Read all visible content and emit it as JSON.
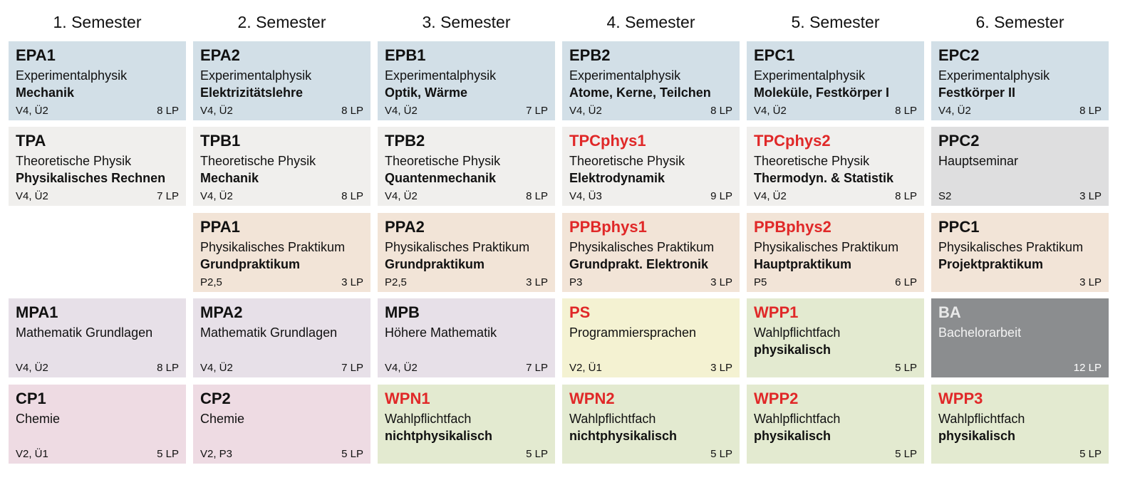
{
  "semesters": [
    "1. Semester",
    "2. Semester",
    "3. Semester",
    "4. Semester",
    "5. Semester",
    "6. Semester"
  ],
  "colors": {
    "experimental": "#d2dfe7",
    "theoretical": "#f0efed",
    "seminar": "#dededf",
    "practical": "#f2e4d7",
    "math": "#e7e0e8",
    "chemistry": "#eedbe3",
    "programming": "#f4f2d2",
    "elective": "#e3ead0",
    "thesis": "#8b8d8f",
    "highlight": "#e02828"
  },
  "rows": [
    [
      {
        "code": "EPA1",
        "line1": "Experimentalphysik",
        "line2": "Mechanik",
        "hours": "V4, Ü2",
        "credits": "8 LP",
        "color": "experimental",
        "red": false
      },
      {
        "code": "EPA2",
        "line1": "Experimentalphysik",
        "line2": "Elektrizitätslehre",
        "hours": "V4, Ü2",
        "credits": "8 LP",
        "color": "experimental",
        "red": false
      },
      {
        "code": "EPB1",
        "line1": "Experimentalphysik",
        "line2": "Optik, Wärme",
        "hours": "V4, Ü2",
        "credits": "7 LP",
        "color": "experimental",
        "red": false
      },
      {
        "code": "EPB2",
        "line1": "Experimentalphysik",
        "line2": "Atome, Kerne, Teilchen",
        "hours": "V4, Ü2",
        "credits": "8 LP",
        "color": "experimental",
        "red": false
      },
      {
        "code": "EPC1",
        "line1": "Experimentalphysik",
        "line2": "Moleküle, Festkörper I",
        "hours": "V4, Ü2",
        "credits": "8 LP",
        "color": "experimental",
        "red": false
      },
      {
        "code": "EPC2",
        "line1": "Experimentalphysik",
        "line2": "Festkörper II",
        "hours": "V4, Ü2",
        "credits": "8 LP",
        "color": "experimental",
        "red": false
      }
    ],
    [
      {
        "code": "TPA",
        "line1": "Theoretische Physik",
        "line2": "Physikalisches Rechnen",
        "hours": "V4, Ü2",
        "credits": "7 LP",
        "color": "theoretical",
        "red": false
      },
      {
        "code": "TPB1",
        "line1": "Theoretische Physik",
        "line2": "Mechanik",
        "hours": "V4, Ü2",
        "credits": "8 LP",
        "color": "theoretical",
        "red": false
      },
      {
        "code": "TPB2",
        "line1": "Theoretische Physik",
        "line2": "Quantenmechanik",
        "hours": "V4, Ü2",
        "credits": "8 LP",
        "color": "theoretical",
        "red": false
      },
      {
        "code": "TPCphys1",
        "line1": "Theoretische Physik",
        "line2": "Elektrodynamik",
        "hours": "V4, Ü3",
        "credits": "9 LP",
        "color": "theoretical",
        "red": true
      },
      {
        "code": "TPCphys2",
        "line1": "Theoretische Physik",
        "line2": "Thermodyn. & Statistik",
        "hours": "V4, Ü2",
        "credits": "8 LP",
        "color": "theoretical",
        "red": true
      },
      {
        "code": "PPC2",
        "line1": "Hauptseminar",
        "line2": "",
        "hours": "S2",
        "credits": "3 LP",
        "color": "seminar",
        "red": false
      }
    ],
    [
      null,
      {
        "code": "PPA1",
        "line1": "Physikalisches Praktikum",
        "line2": "Grundpraktikum",
        "hours": "P2,5",
        "credits": "3 LP",
        "color": "practical",
        "red": false
      },
      {
        "code": "PPA2",
        "line1": "Physikalisches Praktikum",
        "line2": "Grundpraktikum",
        "hours": "P2,5",
        "credits": "3 LP",
        "color": "practical",
        "red": false
      },
      {
        "code": "PPBphys1",
        "line1": "Physikalisches Praktikum",
        "line2": "Grundprakt. Elektronik",
        "hours": "P3",
        "credits": "3 LP",
        "color": "practical",
        "red": true
      },
      {
        "code": "PPBphys2",
        "line1": "Physikalisches Praktikum",
        "line2": "Hauptpraktikum",
        "hours": "P5",
        "credits": "6 LP",
        "color": "practical",
        "red": true
      },
      {
        "code": "PPC1",
        "line1": "Physikalisches Praktikum",
        "line2": "Projektpraktikum",
        "hours": "",
        "credits": "3 LP",
        "color": "practical",
        "red": false
      }
    ],
    [
      {
        "code": "MPA1",
        "line1": "Mathematik Grundlagen",
        "line2": "",
        "hours": "V4, Ü2",
        "credits": "8 LP",
        "color": "math",
        "red": false
      },
      {
        "code": "MPA2",
        "line1": "Mathematik Grundlagen",
        "line2": "",
        "hours": "V4, Ü2",
        "credits": "7 LP",
        "color": "math",
        "red": false
      },
      {
        "code": "MPB",
        "line1": "Höhere Mathematik",
        "line2": "",
        "hours": "V4, Ü2",
        "credits": "7 LP",
        "color": "math",
        "red": false
      },
      {
        "code": "PS",
        "line1": "Programmiersprachen",
        "line2": "",
        "hours": "V2, Ü1",
        "credits": "3 LP",
        "color": "programming",
        "red": true
      },
      {
        "code": "WPP1",
        "line1": "Wahlpflichtfach",
        "line2": "physikalisch",
        "hours": "",
        "credits": "5 LP",
        "color": "elective",
        "red": true
      },
      {
        "code": "BA",
        "line1": "Bachelorarbeit",
        "line2": "",
        "hours": "",
        "credits": "12 LP",
        "color": "thesis",
        "red": false,
        "dark": true
      }
    ],
    [
      {
        "code": "CP1",
        "line1": "Chemie",
        "line2": "",
        "hours": "V2, Ü1",
        "credits": "5 LP",
        "color": "chemistry",
        "red": false
      },
      {
        "code": "CP2",
        "line1": "Chemie",
        "line2": "",
        "hours": "V2, P3",
        "credits": "5 LP",
        "color": "chemistry",
        "red": false
      },
      {
        "code": "WPN1",
        "line1": "Wahlpflichtfach",
        "line2": "nichtphysikalisch",
        "hours": "",
        "credits": "5 LP",
        "color": "elective",
        "red": true
      },
      {
        "code": "WPN2",
        "line1": "Wahlpflichtfach",
        "line2": "nichtphysikalisch",
        "hours": "",
        "credits": "5 LP",
        "color": "elective",
        "red": true
      },
      {
        "code": "WPP2",
        "line1": "Wahlpflichtfach",
        "line2": "physikalisch",
        "hours": "",
        "credits": "5 LP",
        "color": "elective",
        "red": true
      },
      {
        "code": "WPP3",
        "line1": "Wahlpflichtfach",
        "line2": "physikalisch",
        "hours": "",
        "credits": "5 LP",
        "color": "elective",
        "red": true
      }
    ]
  ]
}
